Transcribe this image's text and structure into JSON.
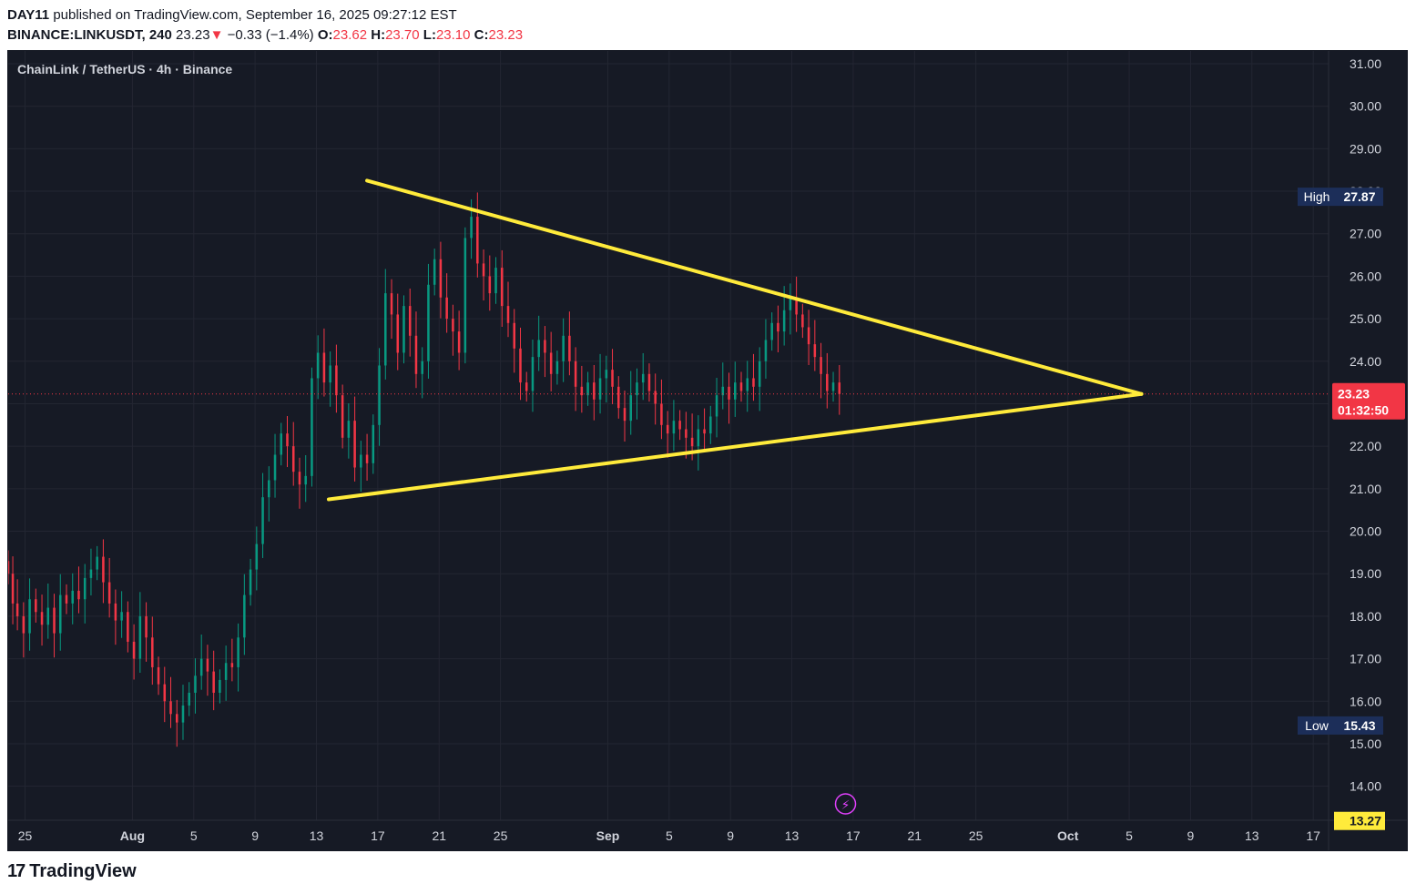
{
  "header": {
    "publisher": "DAY11",
    "published_text": "published on TradingView.com, September 16, 2025 09:27:12 EST",
    "symbol": "BINANCE:LINKUSDT, 240",
    "last": "23.23",
    "change_arrow": "▼",
    "change": "−0.33 (−1.4%)",
    "o_label": "O:",
    "o_value": "23.62",
    "h_label": "H:",
    "h_value": "23.70",
    "l_label": "L:",
    "l_value": "23.10",
    "c_label": "C:",
    "c_value": "23.23"
  },
  "legend": {
    "title": "ChainLink / TetherUS · 4h · Binance"
  },
  "footer": {
    "logo_text": "TradingView",
    "logo_mark": "17"
  },
  "colors": {
    "background": "#161a25",
    "grid": "#232632",
    "up": "#089981",
    "down": "#f23645",
    "trendline": "#ffeb3b",
    "label_bg": "#1c2e59",
    "price_bg": "#f23645",
    "yellow_label": "#ffeb3b",
    "text": "#d1d4dc"
  },
  "chart_data": {
    "type": "candlestick",
    "symbol": "LINKUSDT",
    "timeframe": "4h",
    "ylim": [
      13.2,
      31.3
    ],
    "yticks": [
      14,
      15,
      16,
      17,
      18,
      19,
      20,
      21,
      22,
      23,
      24,
      25,
      26,
      27,
      28,
      29,
      30,
      31
    ],
    "ytick_labels": [
      "14.00",
      "15.00",
      "16.00",
      "17.00",
      "18.00",
      "19.00",
      "20.00",
      "21.00",
      "22.00",
      "23.00",
      "24.00",
      "25.00",
      "26.00",
      "27.00",
      "28.00",
      "29.00",
      "30.00",
      "31.00"
    ],
    "x_start_day": 23.9,
    "x_end_day": 84.0,
    "xticks": [
      {
        "day": 25,
        "label": "25"
      },
      {
        "day": 32,
        "label": "Aug"
      },
      {
        "day": 36,
        "label": "5"
      },
      {
        "day": 40,
        "label": "9"
      },
      {
        "day": 44,
        "label": "13"
      },
      {
        "day": 48,
        "label": "17"
      },
      {
        "day": 52,
        "label": "21"
      },
      {
        "day": 56,
        "label": "25"
      },
      {
        "day": 63,
        "label": "Sep"
      },
      {
        "day": 67,
        "label": "5"
      },
      {
        "day": 71,
        "label": "9"
      },
      {
        "day": 75,
        "label": "13"
      },
      {
        "day": 79,
        "label": "17"
      },
      {
        "day": 83,
        "label": "21"
      },
      {
        "day": 87,
        "label": "25"
      },
      {
        "day": 93,
        "label": "Oct"
      },
      {
        "day": 97,
        "label": "5"
      },
      {
        "day": 101,
        "label": "9"
      },
      {
        "day": 105,
        "label": "13"
      },
      {
        "day": 109,
        "label": "17"
      }
    ],
    "x_axis_min_day": 23.9,
    "x_axis_max_day": 110.0,
    "closes": [
      [
        23.9,
        19.0
      ],
      [
        24.2,
        18.3
      ],
      [
        24.5,
        18.0
      ],
      [
        24.9,
        17.6
      ],
      [
        25.3,
        18.4
      ],
      [
        25.7,
        18.1
      ],
      [
        26.1,
        17.8
      ],
      [
        26.5,
        18.2
      ],
      [
        26.9,
        17.6
      ],
      [
        27.3,
        18.5
      ],
      [
        27.7,
        18.3
      ],
      [
        28.1,
        18.6
      ],
      [
        28.5,
        18.4
      ],
      [
        28.9,
        18.9
      ],
      [
        29.3,
        19.1
      ],
      [
        29.7,
        19.4
      ],
      [
        30.1,
        18.8
      ],
      [
        30.5,
        18.3
      ],
      [
        30.9,
        17.9
      ],
      [
        31.3,
        18.1
      ],
      [
        31.7,
        17.4
      ],
      [
        32.1,
        17.0
      ],
      [
        32.5,
        18.0
      ],
      [
        32.9,
        17.5
      ],
      [
        33.3,
        16.8
      ],
      [
        33.7,
        16.4
      ],
      [
        34.1,
        16.0
      ],
      [
        34.5,
        15.7
      ],
      [
        34.9,
        15.5
      ],
      [
        35.3,
        15.9
      ],
      [
        35.7,
        16.2
      ],
      [
        36.1,
        16.6
      ],
      [
        36.5,
        17.0
      ],
      [
        36.9,
        16.7
      ],
      [
        37.3,
        16.2
      ],
      [
        37.7,
        16.5
      ],
      [
        38.1,
        16.9
      ],
      [
        38.5,
        16.8
      ],
      [
        38.9,
        17.5
      ],
      [
        39.3,
        18.5
      ],
      [
        39.7,
        19.1
      ],
      [
        40.1,
        19.7
      ],
      [
        40.5,
        20.8
      ],
      [
        40.9,
        21.2
      ],
      [
        41.3,
        21.8
      ],
      [
        41.7,
        22.3
      ],
      [
        42.1,
        22.0
      ],
      [
        42.5,
        21.4
      ],
      [
        42.9,
        21.1
      ],
      [
        43.3,
        21.3
      ],
      [
        43.7,
        23.6
      ],
      [
        44.1,
        24.2
      ],
      [
        44.5,
        23.5
      ],
      [
        44.9,
        23.9
      ],
      [
        45.3,
        23.2
      ],
      [
        45.7,
        22.2
      ],
      [
        46.1,
        22.6
      ],
      [
        46.5,
        21.5
      ],
      [
        46.9,
        21.8
      ],
      [
        47.3,
        21.6
      ],
      [
        47.7,
        22.5
      ],
      [
        48.1,
        23.9
      ],
      [
        48.5,
        25.6
      ],
      [
        48.9,
        25.1
      ],
      [
        49.3,
        24.2
      ],
      [
        49.7,
        25.3
      ],
      [
        50.1,
        24.6
      ],
      [
        50.5,
        23.7
      ],
      [
        50.9,
        24.0
      ],
      [
        51.3,
        25.8
      ],
      [
        51.7,
        26.4
      ],
      [
        52.1,
        25.5
      ],
      [
        52.5,
        25.0
      ],
      [
        52.9,
        24.7
      ],
      [
        53.3,
        24.2
      ],
      [
        53.7,
        26.9
      ],
      [
        54.1,
        27.4
      ],
      [
        54.5,
        26.3
      ],
      [
        54.9,
        26.0
      ],
      [
        55.3,
        25.6
      ],
      [
        55.7,
        26.2
      ],
      [
        56.1,
        25.3
      ],
      [
        56.5,
        24.9
      ],
      [
        56.9,
        24.3
      ],
      [
        57.3,
        23.5
      ],
      [
        57.7,
        23.3
      ],
      [
        58.1,
        24.1
      ],
      [
        58.5,
        24.5
      ],
      [
        58.9,
        24.2
      ],
      [
        59.3,
        23.7
      ],
      [
        59.7,
        24.0
      ],
      [
        60.1,
        24.6
      ],
      [
        60.5,
        24.0
      ],
      [
        60.9,
        23.4
      ],
      [
        61.3,
        23.2
      ],
      [
        61.7,
        23.5
      ],
      [
        62.1,
        23.1
      ],
      [
        62.5,
        23.6
      ],
      [
        62.9,
        23.8
      ],
      [
        63.3,
        23.4
      ],
      [
        63.7,
        22.9
      ],
      [
        64.1,
        22.6
      ],
      [
        64.5,
        23.2
      ],
      [
        64.9,
        23.5
      ],
      [
        65.3,
        23.7
      ],
      [
        65.7,
        23.3
      ],
      [
        66.1,
        23.0
      ],
      [
        66.5,
        22.5
      ],
      [
        66.9,
        22.3
      ],
      [
        67.3,
        22.6
      ],
      [
        67.7,
        22.4
      ],
      [
        68.1,
        22.2
      ],
      [
        68.5,
        22.0
      ],
      [
        68.9,
        22.4
      ],
      [
        69.3,
        22.3
      ],
      [
        69.7,
        22.7
      ],
      [
        70.1,
        23.2
      ],
      [
        70.5,
        23.4
      ],
      [
        70.9,
        23.1
      ],
      [
        71.3,
        23.5
      ],
      [
        71.7,
        23.3
      ],
      [
        72.1,
        23.6
      ],
      [
        72.5,
        23.4
      ],
      [
        72.9,
        24.0
      ],
      [
        73.3,
        24.5
      ],
      [
        73.7,
        24.9
      ],
      [
        74.1,
        24.7
      ],
      [
        74.5,
        25.2
      ],
      [
        74.9,
        25.5
      ],
      [
        75.3,
        25.1
      ],
      [
        75.7,
        24.8
      ],
      [
        76.1,
        24.4
      ],
      [
        76.5,
        24.1
      ],
      [
        76.9,
        23.7
      ],
      [
        77.3,
        23.3
      ],
      [
        77.7,
        23.5
      ],
      [
        78.1,
        23.23
      ]
    ],
    "trendlines": [
      {
        "name": "upper",
        "from": [
          47.3,
          28.25
        ],
        "to": [
          97.8,
          23.23
        ]
      },
      {
        "name": "lower",
        "from": [
          44.8,
          20.75
        ],
        "to": [
          97.8,
          23.23
        ]
      }
    ],
    "annotations": {
      "high_label": "High",
      "high_value": "27.87",
      "high_price": 27.87,
      "low_label": "Low",
      "low_value": "15.43",
      "low_price": 15.43,
      "last_price": "23.23",
      "last_price_value": 23.23,
      "countdown": "01:32:50",
      "bottom_price": "13.27",
      "bottom_price_value": 13.27
    },
    "event_icon_day": 78.5,
    "event_icon_glyph": "⚡"
  }
}
